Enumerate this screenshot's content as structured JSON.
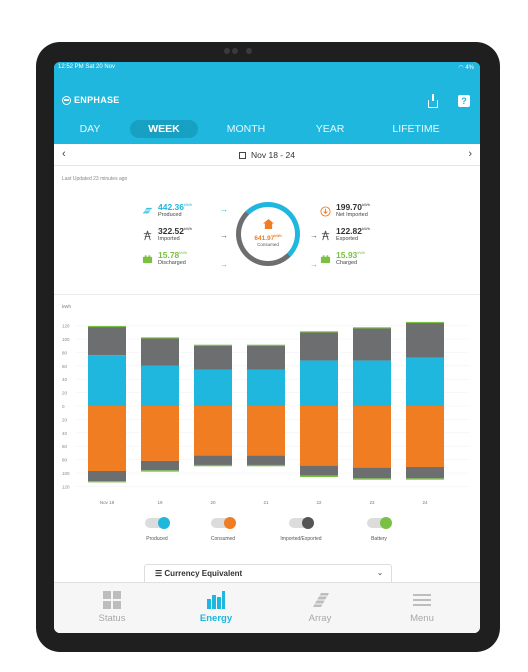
{
  "status_bar": {
    "time": "12:52 PM  Sat 20 Nov",
    "battery": "4%"
  },
  "brand": "ENPHASE",
  "tabs": [
    "DAY",
    "WEEK",
    "MONTH",
    "YEAR",
    "LIFETIME"
  ],
  "active_tab": "WEEK",
  "date_range": "Nov 18 - 24",
  "last_updated": "Last Updated 23 minutes ago",
  "flows": {
    "produced": {
      "value": "442.36",
      "unit": "kWh",
      "label": "Produced"
    },
    "imported": {
      "value": "322.52",
      "unit": "kWh",
      "label": "Imported"
    },
    "discharged": {
      "value": "15.78",
      "unit": "kWh",
      "label": "Discharged"
    },
    "consumed": {
      "value": "641.97",
      "unit": "kWh",
      "label": "Consumed"
    },
    "net_imported": {
      "value": "199.70",
      "unit": "kWh",
      "label": "Net Imported"
    },
    "exported": {
      "value": "122.82",
      "unit": "kWh",
      "label": "Exported"
    },
    "charged": {
      "value": "15.93",
      "unit": "kWh",
      "label": "Charged"
    }
  },
  "colors": {
    "produced": "#1fb7dd",
    "consumed": "#f07d22",
    "grid": "#6d6e70",
    "battery": "#7ac143"
  },
  "chart_data": {
    "type": "bar",
    "ylabel": "kWh",
    "ylim": [
      -130,
      130
    ],
    "y_ticks": [
      "120",
      "100",
      "80",
      "60",
      "40",
      "20",
      "0",
      "20",
      "40",
      "60",
      "80",
      "100",
      "120"
    ],
    "categories": [
      "Nov 18",
      "19",
      "20",
      "21",
      "22",
      "23",
      "24"
    ],
    "series": [
      {
        "name": "Produced",
        "values": [
          76,
          60,
          54,
          54,
          68,
          68,
          72
        ]
      },
      {
        "name": "Imported/Exported",
        "values": [
          42,
          41,
          36,
          36,
          42,
          48,
          52
        ]
      },
      {
        "name": "Consumed",
        "values": [
          -114,
          -98,
          -90,
          -90,
          -106,
          -110,
          -110
        ]
      },
      {
        "name": "Imported/Exported",
        "values": [
          -15,
          -14,
          -14,
          -14,
          -15,
          -16,
          -17
        ]
      },
      {
        "name": "Battery",
        "values": [
          -2,
          -2,
          -2,
          -2,
          -2,
          -2,
          -2
        ]
      }
    ]
  },
  "legend": [
    "Produced",
    "Consumed",
    "Imported/Exported",
    "Battery"
  ],
  "currency_title": "Currency Equivalent",
  "nav": [
    "Status",
    "Energy",
    "Array",
    "Menu"
  ],
  "active_nav": "Energy"
}
